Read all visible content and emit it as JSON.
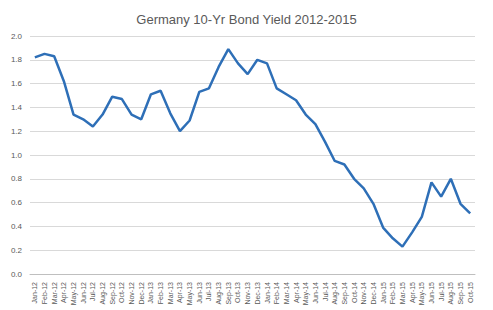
{
  "chart_data": {
    "type": "line",
    "title": "Germany 10-Yr Bond Yield 2012-2015",
    "categories": [
      "Jan-12",
      "Feb-12",
      "Mar-12",
      "Apr-12",
      "May-12",
      "Jun-12",
      "Jul-12",
      "Aug-12",
      "Sep-12",
      "Oct-12",
      "Nov-12",
      "Dec-12",
      "Jan-13",
      "Feb-13",
      "Mar-13",
      "Apr-13",
      "May-13",
      "Jun-13",
      "Jul-13",
      "Aug-13",
      "Sep-13",
      "Oct-13",
      "Nov-13",
      "Dec-13",
      "Jan-14",
      "Feb-14",
      "Mar-14",
      "Apr-14",
      "May-14",
      "Jun-14",
      "Jul-14",
      "Aug-14",
      "Sep-14",
      "Oct-14",
      "Nov-14",
      "Dec-14",
      "Jan-15",
      "Feb-15",
      "Mar-15",
      "Apr-15",
      "May-15",
      "Jun-15",
      "Jul-15",
      "Aug-15",
      "Sep-15",
      "Oct-15"
    ],
    "values": [
      1.82,
      1.85,
      1.83,
      1.62,
      1.34,
      1.3,
      1.24,
      1.34,
      1.49,
      1.47,
      1.34,
      1.3,
      1.51,
      1.54,
      1.35,
      1.2,
      1.29,
      1.53,
      1.56,
      1.74,
      1.89,
      1.77,
      1.68,
      1.8,
      1.77,
      1.56,
      1.51,
      1.46,
      1.34,
      1.26,
      1.11,
      0.95,
      0.92,
      0.8,
      0.72,
      0.59,
      0.39,
      0.3,
      0.23,
      0.35,
      0.48,
      0.77,
      0.65,
      0.8,
      0.59,
      0.51
    ],
    "color": "#2e6fb7",
    "ylim": [
      0,
      2
    ],
    "yticks": [
      {
        "value": 0,
        "label": "0.0"
      },
      0.2,
      0.4,
      0.6,
      0.8,
      {
        "value": 1,
        "label": "1.0"
      },
      1.2,
      1.4,
      1.6,
      1.8,
      {
        "value": 2,
        "label": "2.0"
      }
    ],
    "grid": true
  }
}
